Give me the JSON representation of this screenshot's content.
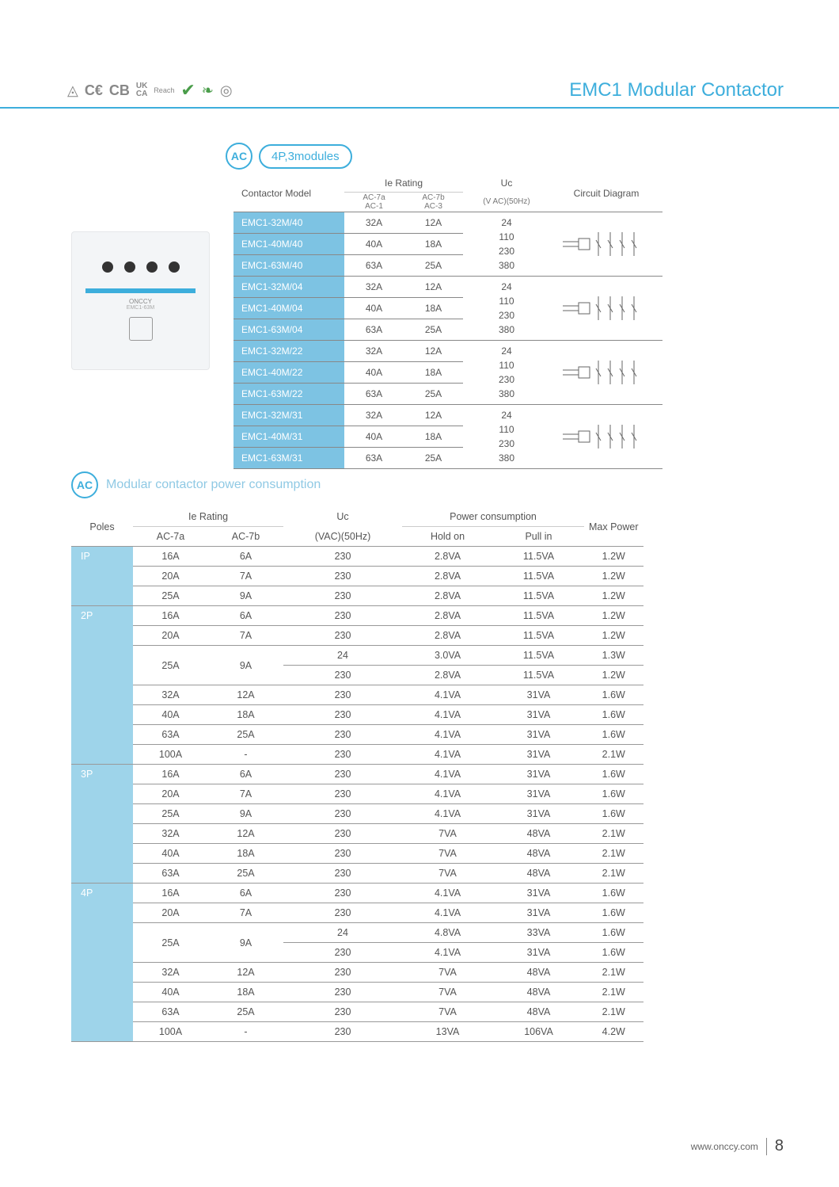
{
  "page": {
    "title": "EMC1 Modular Contactor",
    "footer_url": "www.onccy.com",
    "page_number": "8",
    "cert_marks": [
      "◬",
      "CE",
      "CB",
      "UKCA",
      "Reach",
      "✓",
      "◎"
    ]
  },
  "colors": {
    "accent": "#3daedc",
    "accent_light": "#7dc3e3",
    "accent_lighter": "#9ed4ea",
    "text": "#555555",
    "border": "#888888"
  },
  "section1": {
    "badge_ac": "AC",
    "badge_text": "4P,3modules",
    "headers": {
      "model": "Contactor Model",
      "ie": "Ie Rating",
      "ie_sub1a": "AC-7a",
      "ie_sub1b": "AC-1",
      "ie_sub2a": "AC-7b",
      "ie_sub2b": "AC-3",
      "uc": "Uc",
      "uc_sub": "(V AC)(50Hz)",
      "diagram": "Circuit Diagram"
    },
    "uc_values": [
      "24",
      "110",
      "230",
      "380"
    ],
    "groups": [
      {
        "rows": [
          {
            "model": "EMC1-32M/40",
            "a": "32A",
            "b": "12A"
          },
          {
            "model": "EMC1-40M/40",
            "a": "40A",
            "b": "18A"
          },
          {
            "model": "EMC1-63M/40",
            "a": "63A",
            "b": "25A"
          }
        ],
        "diagram_label": "4NO"
      },
      {
        "rows": [
          {
            "model": "EMC1-32M/04",
            "a": "32A",
            "b": "12A"
          },
          {
            "model": "EMC1-40M/04",
            "a": "40A",
            "b": "18A"
          },
          {
            "model": "EMC1-63M/04",
            "a": "63A",
            "b": "25A"
          }
        ],
        "diagram_label": "4NC"
      },
      {
        "rows": [
          {
            "model": "EMC1-32M/22",
            "a": "32A",
            "b": "12A"
          },
          {
            "model": "EMC1-40M/22",
            "a": "40A",
            "b": "18A"
          },
          {
            "model": "EMC1-63M/22",
            "a": "63A",
            "b": "25A"
          }
        ],
        "diagram_label": "2NO+2NC"
      },
      {
        "rows": [
          {
            "model": "EMC1-32M/31",
            "a": "32A",
            "b": "12A"
          },
          {
            "model": "EMC1-40M/31",
            "a": "40A",
            "b": "18A"
          },
          {
            "model": "EMC1-63M/31",
            "a": "63A",
            "b": "25A"
          }
        ],
        "diagram_label": "3NO+1NC"
      }
    ]
  },
  "section2": {
    "badge_ac": "AC",
    "title": "Modular contactor power consumption",
    "headers": {
      "poles": "Poles",
      "ie": "Ie Rating",
      "ie_a": "AC-7a",
      "ie_b": "AC-7b",
      "uc": "Uc",
      "uc_sub": "(VAC)(50Hz)",
      "power": "Power consumption",
      "hold": "Hold on",
      "pull": "Pull in",
      "max": "Max Power"
    },
    "groups": [
      {
        "poles": "IP",
        "rows": [
          {
            "a": "16A",
            "b": "6A",
            "uc": "230",
            "hold": "2.8VA",
            "pull": "11.5VA",
            "max": "1.2W"
          },
          {
            "a": "20A",
            "b": "7A",
            "uc": "230",
            "hold": "2.8VA",
            "pull": "11.5VA",
            "max": "1.2W"
          },
          {
            "a": "25A",
            "b": "9A",
            "uc": "230",
            "hold": "2.8VA",
            "pull": "11.5VA",
            "max": "1.2W"
          }
        ]
      },
      {
        "poles": "2P",
        "rows": [
          {
            "a": "16A",
            "b": "6A",
            "uc": "230",
            "hold": "2.8VA",
            "pull": "11.5VA",
            "max": "1.2W"
          },
          {
            "a": "20A",
            "b": "7A",
            "uc": "230",
            "hold": "2.8VA",
            "pull": "11.5VA",
            "max": "1.2W"
          },
          {
            "a": "25A",
            "b": "9A",
            "uc": "24",
            "hold": "3.0VA",
            "pull": "11.5VA",
            "max": "1.3W",
            "merge_ab": true
          },
          {
            "a": "",
            "b": "",
            "uc": "230",
            "hold": "2.8VA",
            "pull": "11.5VA",
            "max": "1.2W",
            "merged": true
          },
          {
            "a": "32A",
            "b": "12A",
            "uc": "230",
            "hold": "4.1VA",
            "pull": "31VA",
            "max": "1.6W"
          },
          {
            "a": "40A",
            "b": "18A",
            "uc": "230",
            "hold": "4.1VA",
            "pull": "31VA",
            "max": "1.6W"
          },
          {
            "a": "63A",
            "b": "25A",
            "uc": "230",
            "hold": "4.1VA",
            "pull": "31VA",
            "max": "1.6W"
          },
          {
            "a": "100A",
            "b": "-",
            "uc": "230",
            "hold": "4.1VA",
            "pull": "31VA",
            "max": "2.1W"
          }
        ]
      },
      {
        "poles": "3P",
        "rows": [
          {
            "a": "16A",
            "b": "6A",
            "uc": "230",
            "hold": "4.1VA",
            "pull": "31VA",
            "max": "1.6W"
          },
          {
            "a": "20A",
            "b": "7A",
            "uc": "230",
            "hold": "4.1VA",
            "pull": "31VA",
            "max": "1.6W"
          },
          {
            "a": "25A",
            "b": "9A",
            "uc": "230",
            "hold": "4.1VA",
            "pull": "31VA",
            "max": "1.6W"
          },
          {
            "a": "32A",
            "b": "12A",
            "uc": "230",
            "hold": "7VA",
            "pull": "48VA",
            "max": "2.1W"
          },
          {
            "a": "40A",
            "b": "18A",
            "uc": "230",
            "hold": "7VA",
            "pull": "48VA",
            "max": "2.1W"
          },
          {
            "a": "63A",
            "b": "25A",
            "uc": "230",
            "hold": "7VA",
            "pull": "48VA",
            "max": "2.1W"
          }
        ]
      },
      {
        "poles": "4P",
        "rows": [
          {
            "a": "16A",
            "b": "6A",
            "uc": "230",
            "hold": "4.1VA",
            "pull": "31VA",
            "max": "1.6W"
          },
          {
            "a": "20A",
            "b": "7A",
            "uc": "230",
            "hold": "4.1VA",
            "pull": "31VA",
            "max": "1.6W"
          },
          {
            "a": "25A",
            "b": "9A",
            "uc": "24",
            "hold": "4.8VA",
            "pull": "33VA",
            "max": "1.6W",
            "merge_ab": true
          },
          {
            "a": "",
            "b": "",
            "uc": "230",
            "hold": "4.1VA",
            "pull": "31VA",
            "max": "1.6W",
            "merged": true
          },
          {
            "a": "32A",
            "b": "12A",
            "uc": "230",
            "hold": "7VA",
            "pull": "48VA",
            "max": "2.1W"
          },
          {
            "a": "40A",
            "b": "18A",
            "uc": "230",
            "hold": "7VA",
            "pull": "48VA",
            "max": "2.1W"
          },
          {
            "a": "63A",
            "b": "25A",
            "uc": "230",
            "hold": "7VA",
            "pull": "48VA",
            "max": "2.1W"
          },
          {
            "a": "100A",
            "b": "-",
            "uc": "230",
            "hold": "13VA",
            "pull": "106VA",
            "max": "4.2W"
          }
        ]
      }
    ]
  }
}
